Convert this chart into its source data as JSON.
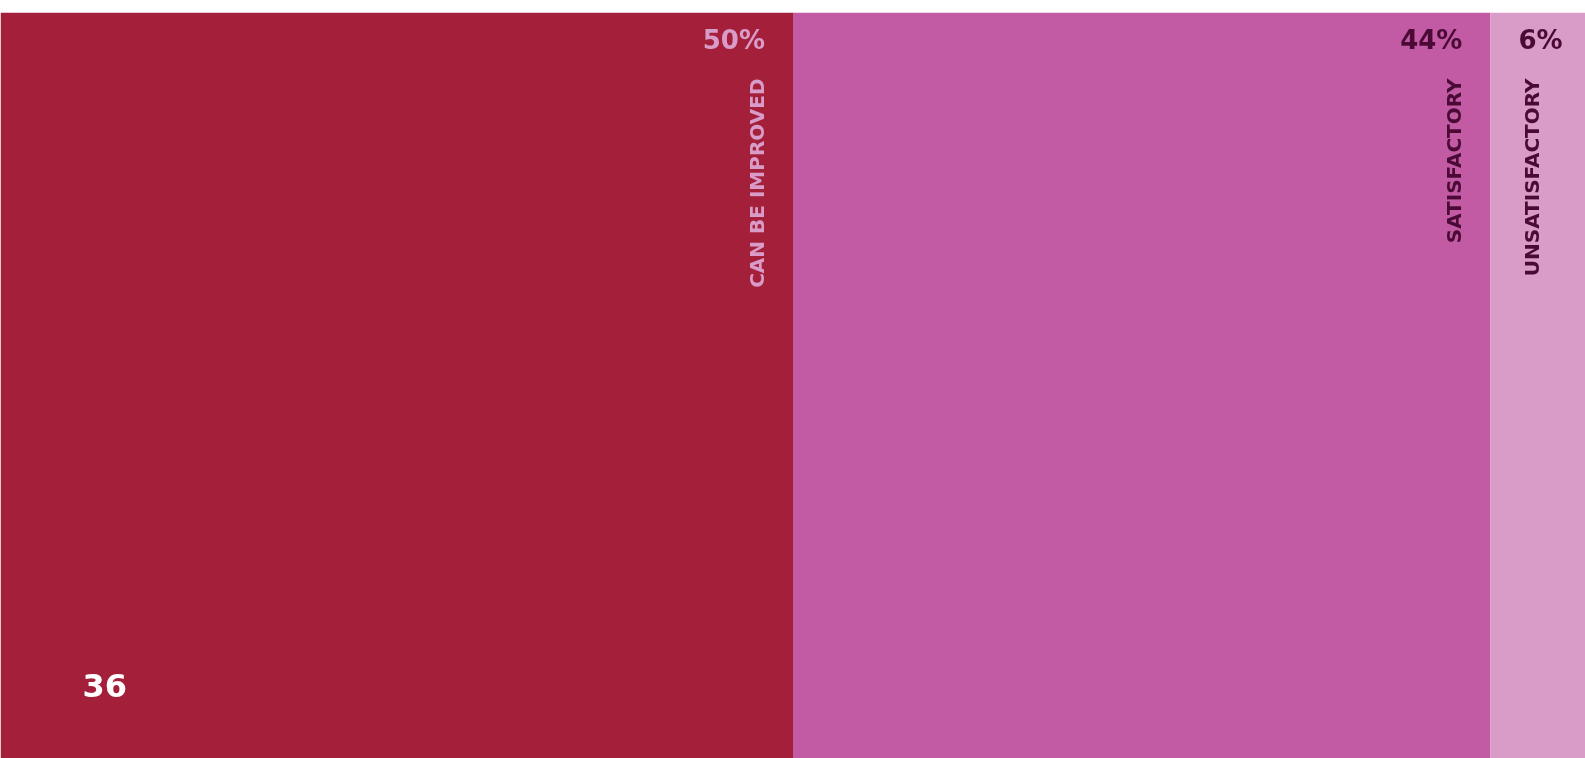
{
  "chart_data": {
    "type": "bar",
    "stacked": true,
    "orientation": "horizontal",
    "categories": [
      null
    ],
    "series": [
      {
        "name": "CAN BE IMPROVED",
        "color": "#a4203a",
        "values": [
          50
        ],
        "value_labels": [
          "50%"
        ]
      },
      {
        "name": "SATISFACTORY",
        "color": "#c25ba4",
        "values": [
          44
        ],
        "value_labels": [
          "44%"
        ]
      },
      {
        "name": "UNSATISFACTORY",
        "color": "#d99bc8",
        "values": [
          6
        ],
        "value_labels": [
          "6%"
        ]
      }
    ],
    "xlim": [
      0,
      100
    ],
    "tick_labels": false,
    "grid": false,
    "annotations": [
      "36"
    ]
  }
}
